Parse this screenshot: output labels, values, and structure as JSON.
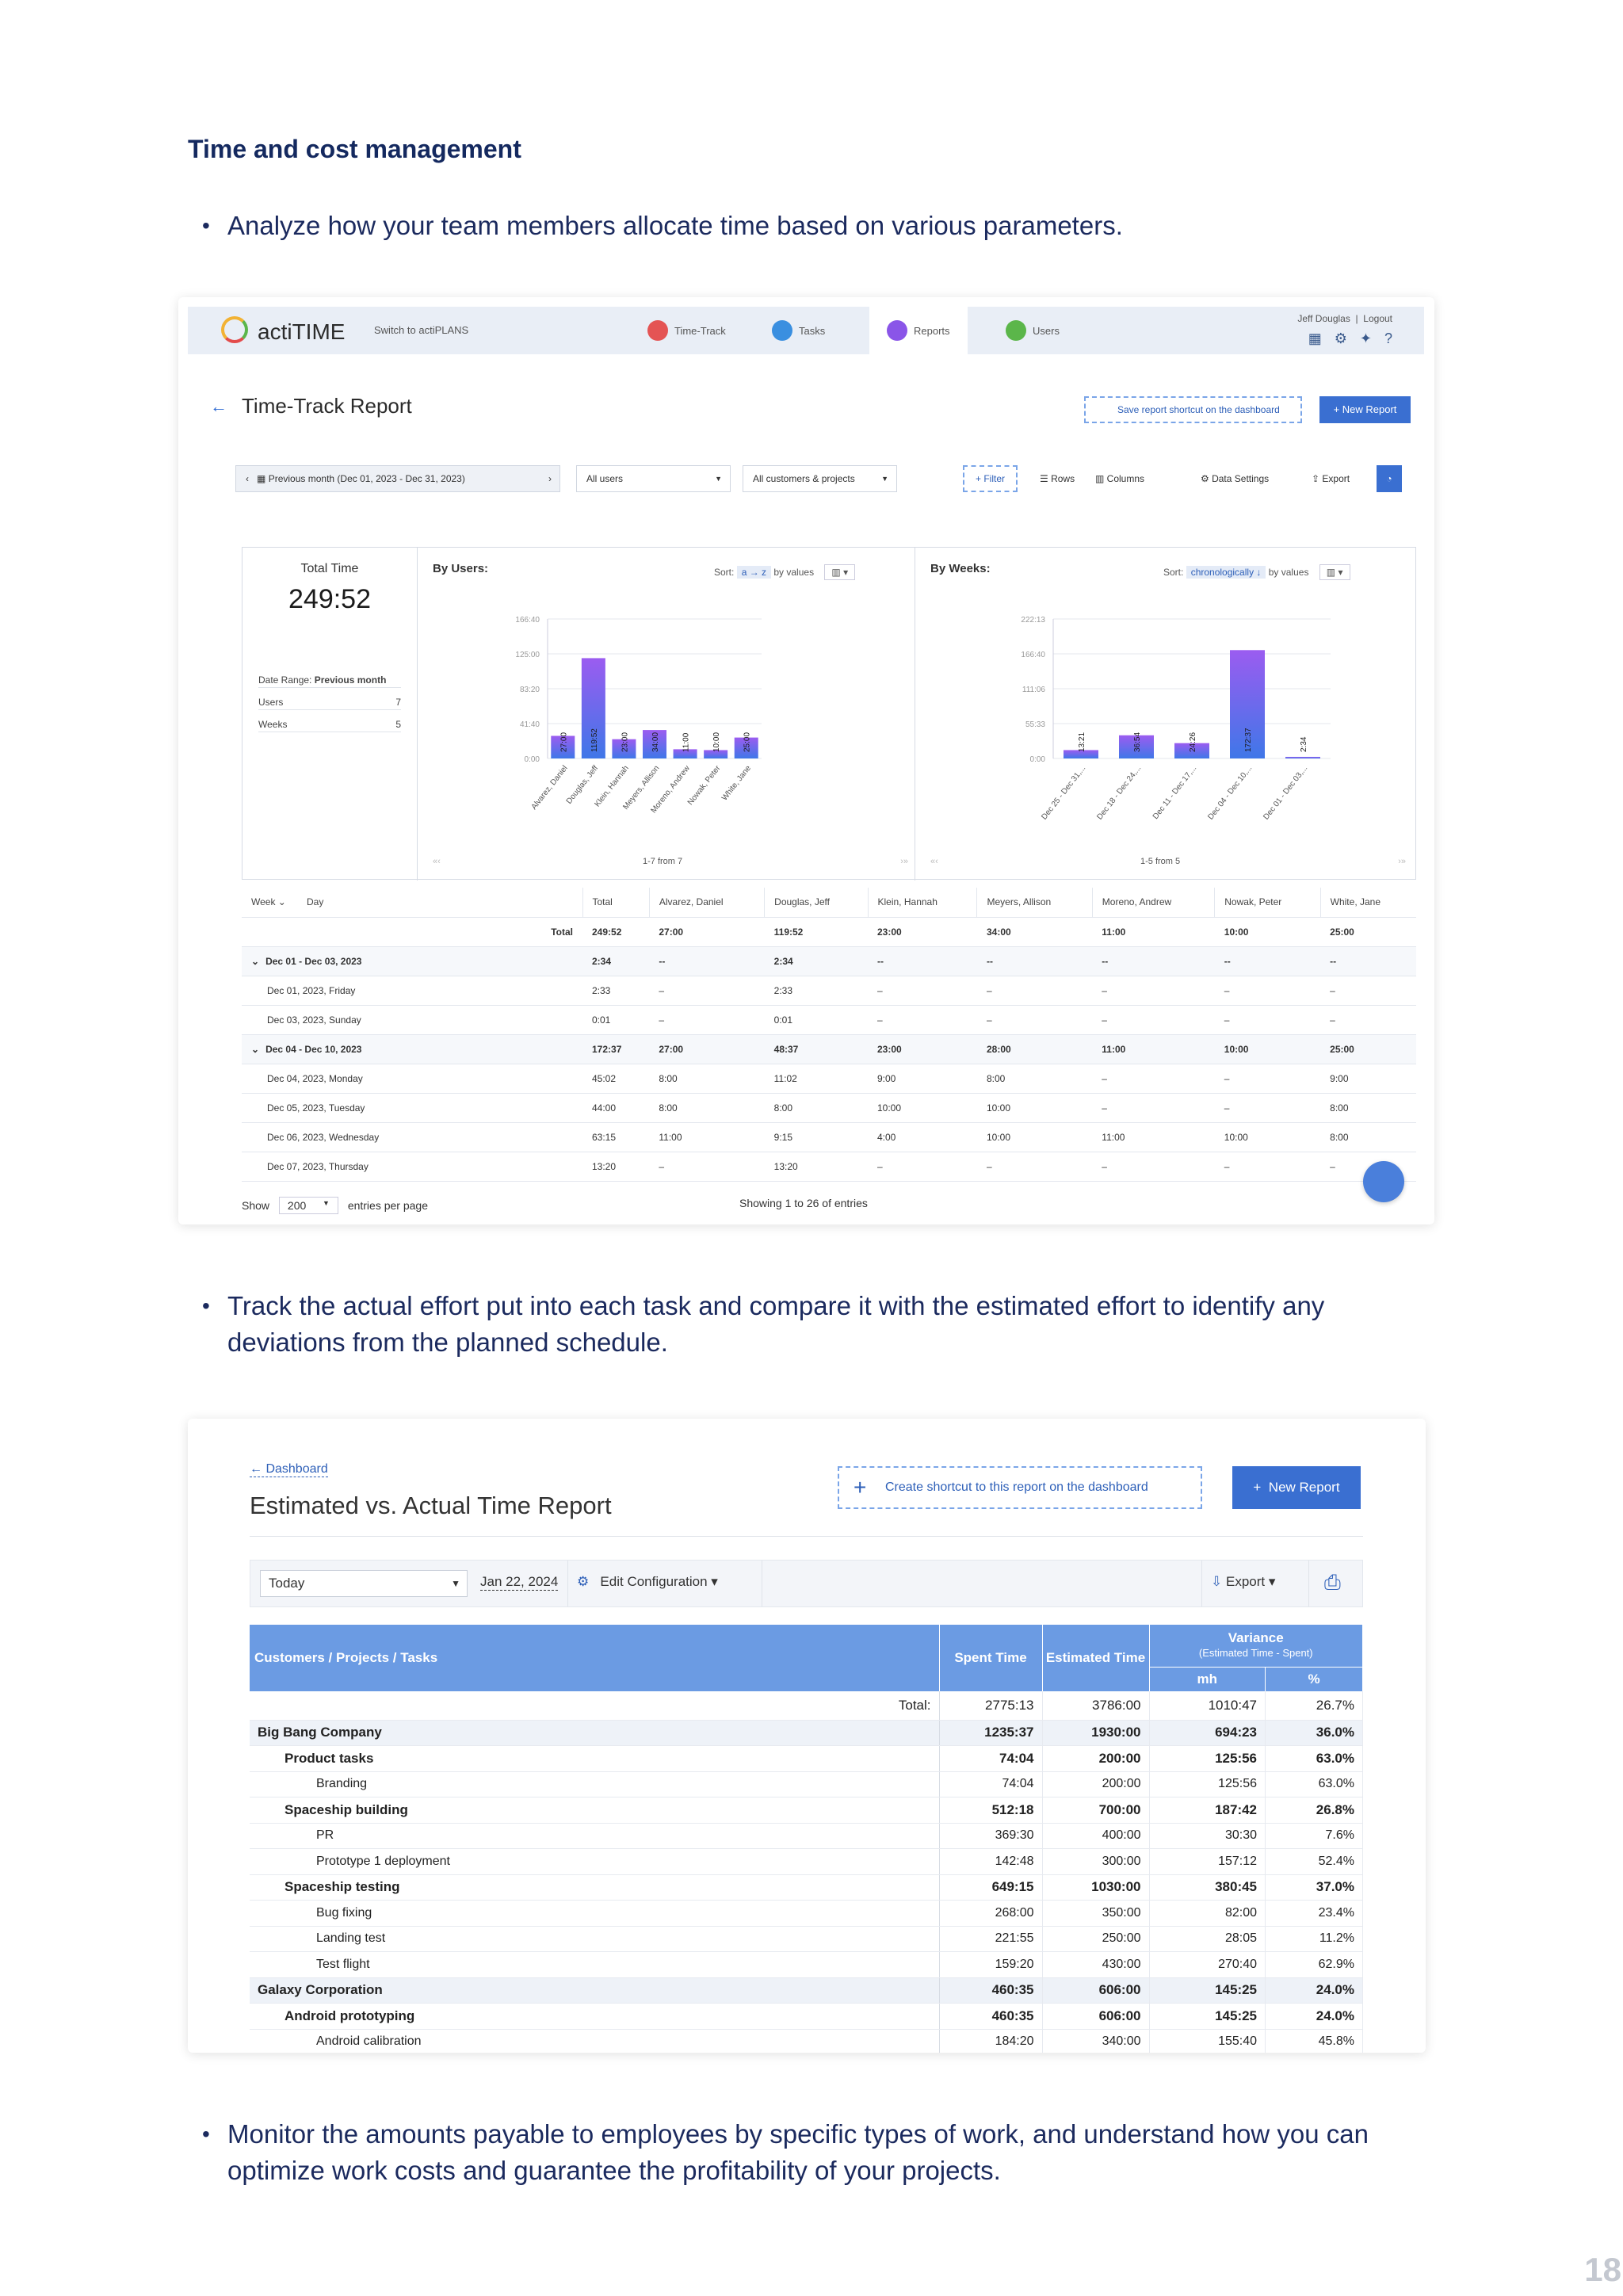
{
  "doc": {
    "heading": "Time and cost management",
    "bullet1": "Analyze how your team members allocate time based on various parameters.",
    "bullet2": "Track the actual effort put into each task and compare it with the estimated effort to identify any deviations from the planned schedule.",
    "bullet3": "Monitor the amounts payable to employees by specific types of work, and understand how you can optimize work costs and guarantee the profitability of your projects.",
    "page_number": "18",
    "bullet_glyph": "•"
  },
  "shot1": {
    "brand": "actiTIME",
    "switch_label": "Switch to actiPLANS",
    "nav": [
      "Time-Track",
      "Tasks",
      "Reports",
      "Users"
    ],
    "user": "Jeff Douglas",
    "logout": "Logout",
    "back_arrow": "←",
    "title": "Time-Track Report",
    "shortcut_label": "Save report shortcut on the dashboard",
    "new_report": "+ New Report",
    "period": "Previous month (Dec 01, 2023 - Dec 31, 2023)",
    "users_select": "All users",
    "customers_select": "All customers & projects",
    "tools": {
      "filter": "+ Filter",
      "rows": "Rows",
      "columns": "Columns",
      "data_settings": "Data Settings",
      "export": "Export"
    },
    "summary": {
      "total_label": "Total Time",
      "total_value": "249:52",
      "date_range_label": "Date Range:",
      "date_range_value": "Previous month",
      "users_label": "Users",
      "users_value": "7",
      "weeks_label": "Weeks",
      "weeks_value": "5"
    },
    "by_users": {
      "title": "By Users:",
      "sort_label": "Sort:",
      "sort_value": "a → z",
      "sort_by": "by values",
      "pager": "1-7 from 7"
    },
    "by_weeks": {
      "title": "By Weeks:",
      "sort_label": "Sort:",
      "sort_value": "chronologically ↓",
      "sort_by": "by values",
      "pager": "1-5 from 5"
    },
    "table": {
      "headers": [
        "Week",
        "Day",
        "Total",
        "Alvarez, Daniel",
        "Douglas, Jeff",
        "Klein, Hannah",
        "Meyers, Allison",
        "Moreno, Andrew",
        "Nowak, Peter",
        "White, Jane"
      ],
      "total_label": "Total",
      "total_row": [
        "249:52",
        "27:00",
        "119:52",
        "23:00",
        "34:00",
        "11:00",
        "10:00",
        "25:00"
      ],
      "rows": [
        {
          "week": true,
          "label": "Dec 01 - Dec 03, 2023",
          "vals": [
            "2:34",
            "--",
            "2:34",
            "--",
            "--",
            "--",
            "--",
            "--"
          ]
        },
        {
          "week": false,
          "label": "Dec 01, 2023, Friday",
          "vals": [
            "2:33",
            "–",
            "2:33",
            "–",
            "–",
            "–",
            "–",
            "–"
          ]
        },
        {
          "week": false,
          "label": "Dec 03, 2023, Sunday",
          "vals": [
            "0:01",
            "–",
            "0:01",
            "–",
            "–",
            "–",
            "–",
            "–"
          ]
        },
        {
          "week": true,
          "label": "Dec 04 - Dec 10, 2023",
          "vals": [
            "172:37",
            "27:00",
            "48:37",
            "23:00",
            "28:00",
            "11:00",
            "10:00",
            "25:00"
          ]
        },
        {
          "week": false,
          "label": "Dec 04, 2023, Monday",
          "vals": [
            "45:02",
            "8:00",
            "11:02",
            "9:00",
            "8:00",
            "–",
            "–",
            "9:00"
          ]
        },
        {
          "week": false,
          "label": "Dec 05, 2023, Tuesday",
          "vals": [
            "44:00",
            "8:00",
            "8:00",
            "10:00",
            "10:00",
            "–",
            "–",
            "8:00"
          ]
        },
        {
          "week": false,
          "label": "Dec 06, 2023, Wednesday",
          "vals": [
            "63:15",
            "11:00",
            "9:15",
            "4:00",
            "10:00",
            "11:00",
            "10:00",
            "8:00"
          ]
        },
        {
          "week": false,
          "label": "Dec 07, 2023, Thursday",
          "vals": [
            "13:20",
            "–",
            "13:20",
            "–",
            "–",
            "–",
            "–",
            "–"
          ]
        }
      ]
    },
    "footer": {
      "show": "Show",
      "per_page": "200",
      "entries": "entries per page",
      "showing": "Showing 1 to 26 of entries"
    }
  },
  "chart_data": [
    {
      "type": "bar",
      "title": "By Users:",
      "categories": [
        "Alvarez, Daniel",
        "Douglas, Jeff",
        "Klein, Hannah",
        "Meyers, Allison",
        "Moreno, Andrew",
        "Nowak, Peter",
        "White, Jane"
      ],
      "values": [
        27.0,
        119.87,
        23.0,
        34.0,
        11.0,
        10.0,
        25.0
      ],
      "labels": [
        "27:00",
        "119:52",
        "23:00",
        "34:00",
        "11:00",
        "10:00",
        "25:00"
      ],
      "yticks": [
        "0:00",
        "41:40",
        "83:20",
        "125:00",
        "166:40"
      ],
      "ylim": [
        0,
        166.67
      ]
    },
    {
      "type": "bar",
      "title": "By Weeks:",
      "categories": [
        "Dec 25 - Dec 31,...",
        "Dec 18 - Dec 24,...",
        "Dec 11 - Dec 17,...",
        "Dec 04 - Dec 10,...",
        "Dec 01 - Dec 03,..."
      ],
      "values": [
        13.35,
        36.9,
        24.43,
        172.62,
        2.57
      ],
      "labels": [
        "13:21",
        "36:54",
        "24:26",
        "172:37",
        "2:34"
      ],
      "yticks": [
        "0:00",
        "55:33",
        "111:06",
        "166:40",
        "222:13"
      ],
      "ylim": [
        0,
        222.22
      ]
    }
  ],
  "shot2": {
    "dashboard_link": "Dashboard",
    "title": "Estimated vs. Actual Time Report",
    "shortcut": "Create shortcut to this report on the dashboard",
    "new_report": "New Report",
    "today": "Today",
    "date": "Jan 22, 2024",
    "edit_config": "Edit Configuration",
    "export": "Export",
    "headers": {
      "name": "Customers / Projects / Tasks",
      "spent": "Spent Time",
      "estimated": "Estimated Time",
      "variance": "Variance",
      "variance_sub": "(Estimated Time - Spent)",
      "mh": "mh",
      "pct": "%"
    },
    "total_label": "Total:",
    "total": [
      "2775:13",
      "3786:00",
      "1010:47",
      "26.7%"
    ],
    "rows": [
      {
        "level": 0,
        "name": "Big Bang Company",
        "vals": [
          "1235:37",
          "1930:00",
          "694:23",
          "36.0%"
        ]
      },
      {
        "level": 1,
        "name": "Product tasks",
        "vals": [
          "74:04",
          "200:00",
          "125:56",
          "63.0%"
        ]
      },
      {
        "level": 2,
        "name": "Branding",
        "vals": [
          "74:04",
          "200:00",
          "125:56",
          "63.0%"
        ]
      },
      {
        "level": 1,
        "name": "Spaceship building",
        "vals": [
          "512:18",
          "700:00",
          "187:42",
          "26.8%"
        ]
      },
      {
        "level": 2,
        "name": "PR",
        "vals": [
          "369:30",
          "400:00",
          "30:30",
          "7.6%"
        ]
      },
      {
        "level": 2,
        "name": "Prototype 1 deployment",
        "vals": [
          "142:48",
          "300:00",
          "157:12",
          "52.4%"
        ]
      },
      {
        "level": 1,
        "name": "Spaceship testing",
        "vals": [
          "649:15",
          "1030:00",
          "380:45",
          "37.0%"
        ]
      },
      {
        "level": 2,
        "name": "Bug fixing",
        "vals": [
          "268:00",
          "350:00",
          "82:00",
          "23.4%"
        ]
      },
      {
        "level": 2,
        "name": "Landing test",
        "vals": [
          "221:55",
          "250:00",
          "28:05",
          "11.2%"
        ]
      },
      {
        "level": 2,
        "name": "Test flight",
        "vals": [
          "159:20",
          "430:00",
          "270:40",
          "62.9%"
        ]
      },
      {
        "level": 0,
        "name": "Galaxy Corporation",
        "vals": [
          "460:35",
          "606:00",
          "145:25",
          "24.0%"
        ]
      },
      {
        "level": 1,
        "name": "Android prototyping",
        "vals": [
          "460:35",
          "606:00",
          "145:25",
          "24.0%"
        ]
      },
      {
        "level": 2,
        "name": "Android calibration",
        "vals": [
          "184:20",
          "340:00",
          "155:40",
          "45.8%"
        ]
      }
    ]
  },
  "colors": {
    "accent": "#3a6fd1",
    "bar_gradient_top": "#9b5cf0",
    "bar_gradient_bottom": "#3f77e8",
    "header_blue": "#6b9be3",
    "text_navy": "#14295f"
  }
}
